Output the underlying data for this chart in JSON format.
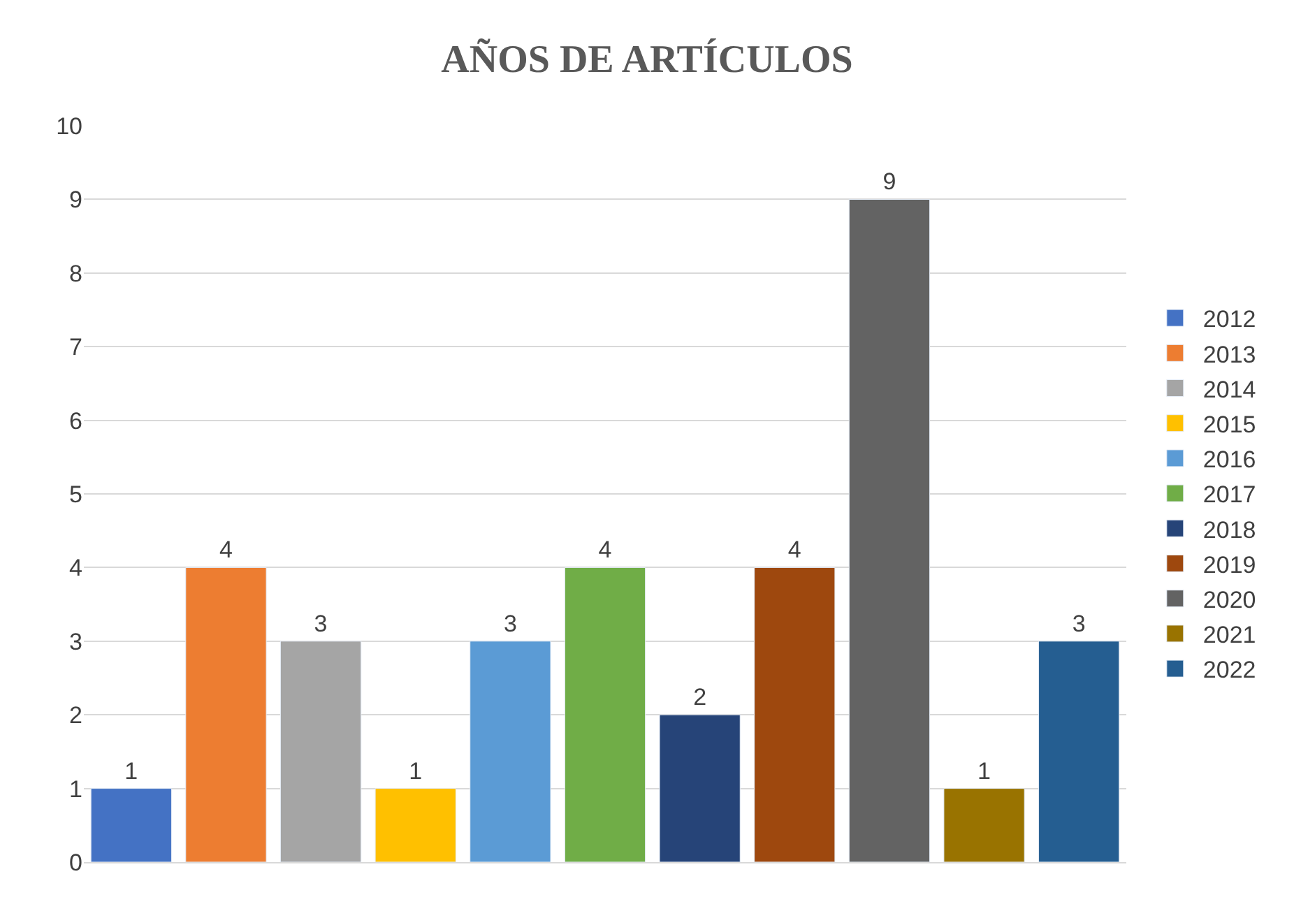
{
  "chart_data": {
    "type": "bar",
    "title": "AÑOS DE ARTÍCULOS",
    "categories": [
      null
    ],
    "series": [
      {
        "name": "2012",
        "color": "#4472c4",
        "values": [
          1
        ]
      },
      {
        "name": "2013",
        "color": "#ed7d31",
        "values": [
          4
        ]
      },
      {
        "name": "2014",
        "color": "#a5a5a5",
        "values": [
          3
        ]
      },
      {
        "name": "2015",
        "color": "#ffc000",
        "values": [
          1
        ]
      },
      {
        "name": "2016",
        "color": "#5b9bd5",
        "values": [
          3
        ]
      },
      {
        "name": "2017",
        "color": "#70ad47",
        "values": [
          4
        ]
      },
      {
        "name": "2018",
        "color": "#264478",
        "values": [
          2
        ]
      },
      {
        "name": "2019",
        "color": "#9e480e",
        "values": [
          4
        ]
      },
      {
        "name": "2020",
        "color": "#636363",
        "values": [
          9
        ]
      },
      {
        "name": "2021",
        "color": "#997300",
        "values": [
          1
        ]
      },
      {
        "name": "2022",
        "color": "#255e91",
        "values": [
          3
        ]
      }
    ],
    "ylim": [
      0,
      10
    ],
    "yticks": [
      0,
      1,
      2,
      3,
      4,
      5,
      6,
      7,
      8,
      9,
      10
    ],
    "grid": "y",
    "legend": "right",
    "data_labels": true
  }
}
